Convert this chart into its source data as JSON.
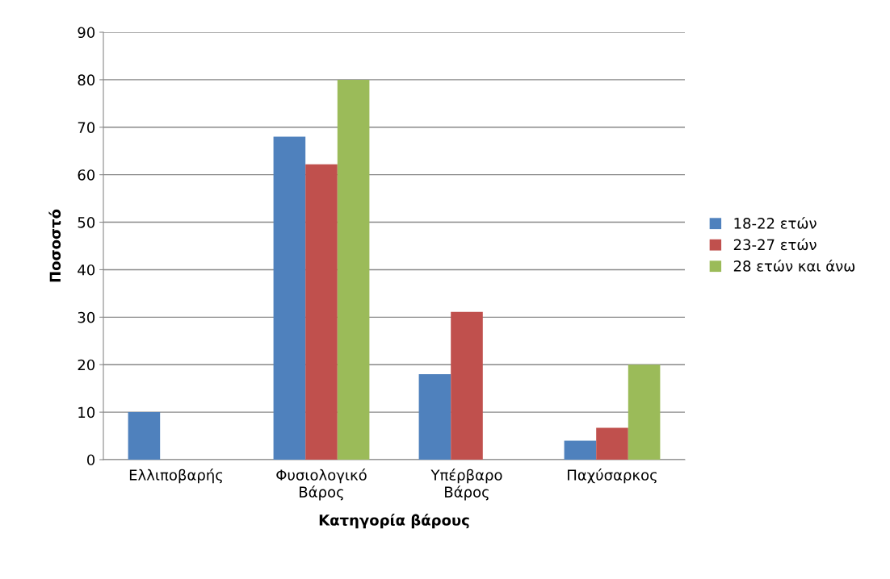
{
  "chart_data": {
    "type": "bar",
    "xlabel": "Κατηγορία βάρους",
    "ylabel": "Ποσοστό",
    "categories": [
      "Ελλιποβαρής",
      "Φυσιολογικό\nΒάρος",
      "Υπέρβαρο\nΒάρος",
      "Παχύσαρκος"
    ],
    "series": [
      {
        "name": "18-22 ετών",
        "color": "#4f81bd",
        "values": [
          10,
          68,
          18,
          4
        ]
      },
      {
        "name": "23-27 ετών",
        "color": "#c0504d",
        "values": [
          0,
          62.2,
          31.1,
          6.7
        ]
      },
      {
        "name": "28 ετών και άνω",
        "color": "#9bbb59",
        "values": [
          0,
          80,
          0,
          20
        ]
      }
    ],
    "ylim": [
      0,
      90
    ],
    "yticks": [
      0,
      10,
      20,
      30,
      40,
      50,
      60,
      70,
      80,
      90
    ],
    "grid": "y",
    "legend": "right"
  }
}
